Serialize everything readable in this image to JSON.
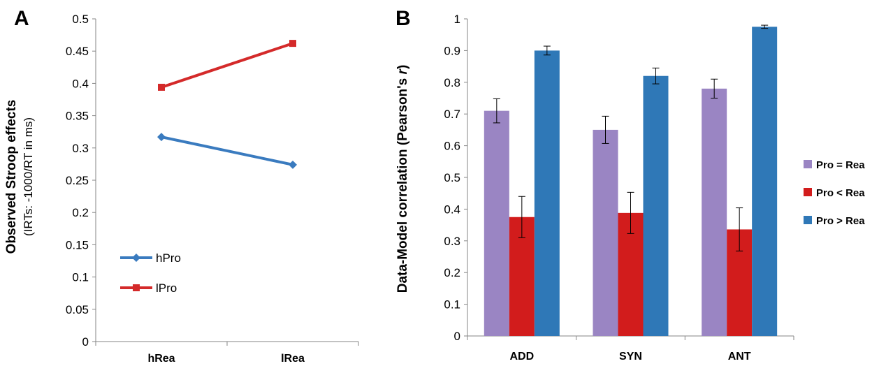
{
  "chart_data": [
    {
      "panel": "A",
      "type": "line",
      "categories": [
        "hRea",
        "lRea"
      ],
      "series": [
        {
          "name": "hPro",
          "values": [
            0.317,
            0.274
          ],
          "color": "#3a7bbf",
          "marker": "diamond"
        },
        {
          "name": "lPro",
          "values": [
            0.394,
            0.462
          ],
          "color": "#d42a2a",
          "marker": "square"
        }
      ],
      "ylabel_line1": "Observed Stroop effects",
      "ylabel_line2": "(IRTs: -1000/RT in ms)",
      "ylim": [
        0,
        0.5
      ],
      "yticks": [
        "0",
        "0.05",
        "0.1",
        "0.15",
        "0.2",
        "0.25",
        "0.3",
        "0.35",
        "0.4",
        "0.45",
        "0.5"
      ],
      "grid": false,
      "legend": "bottom-left inside"
    },
    {
      "panel": "B",
      "type": "bar",
      "categories": [
        "ADD",
        "SYN",
        "ANT"
      ],
      "series": [
        {
          "name": "Pro = Rea",
          "values": [
            0.71,
            0.65,
            0.78
          ],
          "errors": [
            0.038,
            0.043,
            0.03
          ],
          "color": "#9a85c3"
        },
        {
          "name": "Pro < Rea",
          "values": [
            0.375,
            0.388,
            0.336
          ],
          "errors": [
            0.065,
            0.065,
            0.068
          ],
          "color": "#d21c1c"
        },
        {
          "name": "Pro > Rea",
          "values": [
            0.9,
            0.82,
            0.975
          ],
          "errors": [
            0.014,
            0.025,
            0.005
          ],
          "color": "#2f78b7"
        }
      ],
      "ylabel_main": "Data-Model correlation (Pearson's ",
      "ylabel_italic": "r",
      "ylabel_end": ")",
      "ylim": [
        0,
        1
      ],
      "yticks": [
        "0",
        "0.1",
        "0.2",
        "0.3",
        "0.4",
        "0.5",
        "0.6",
        "0.7",
        "0.8",
        "0.9",
        "1"
      ],
      "grid": false,
      "legend": "right"
    }
  ]
}
